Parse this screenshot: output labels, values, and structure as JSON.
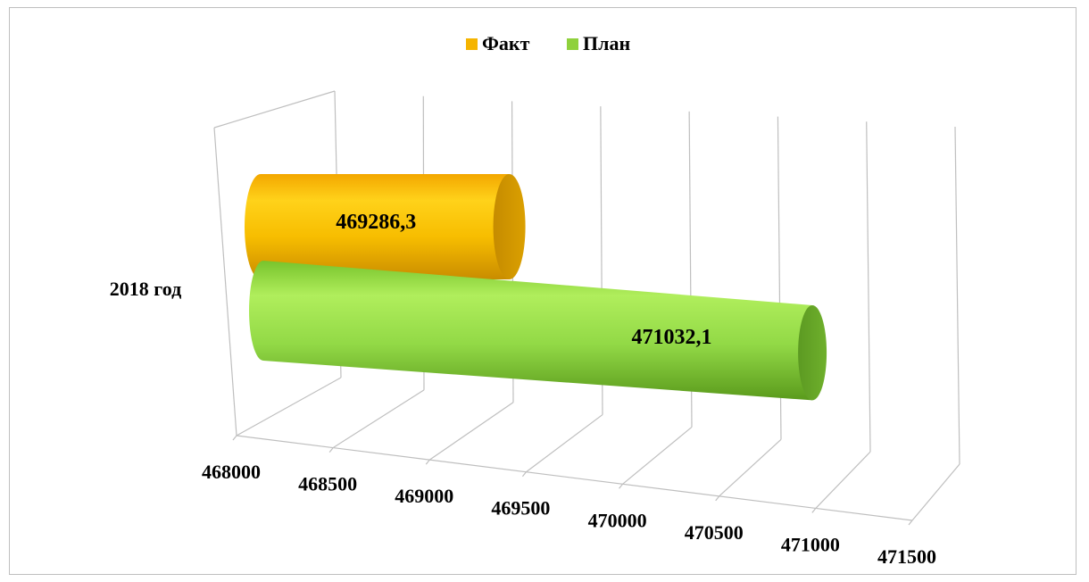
{
  "chart_data": {
    "type": "bar",
    "orientation": "horizontal",
    "style": "3d-cylinder",
    "categories": [
      "2018 год"
    ],
    "series": [
      {
        "name": "Факт",
        "values": [
          469286.3
        ],
        "label": "469286,3",
        "color": "#f5b400"
      },
      {
        "name": "План",
        "values": [
          471032.1
        ],
        "label": "471032,1",
        "color": "#8fd13c"
      }
    ],
    "xlim": [
      468000,
      471500
    ],
    "ticks": [
      "468000",
      "468500",
      "469000",
      "469500",
      "470000",
      "470500",
      "471000",
      "471500"
    ],
    "legend_position": "top",
    "grid": true
  }
}
